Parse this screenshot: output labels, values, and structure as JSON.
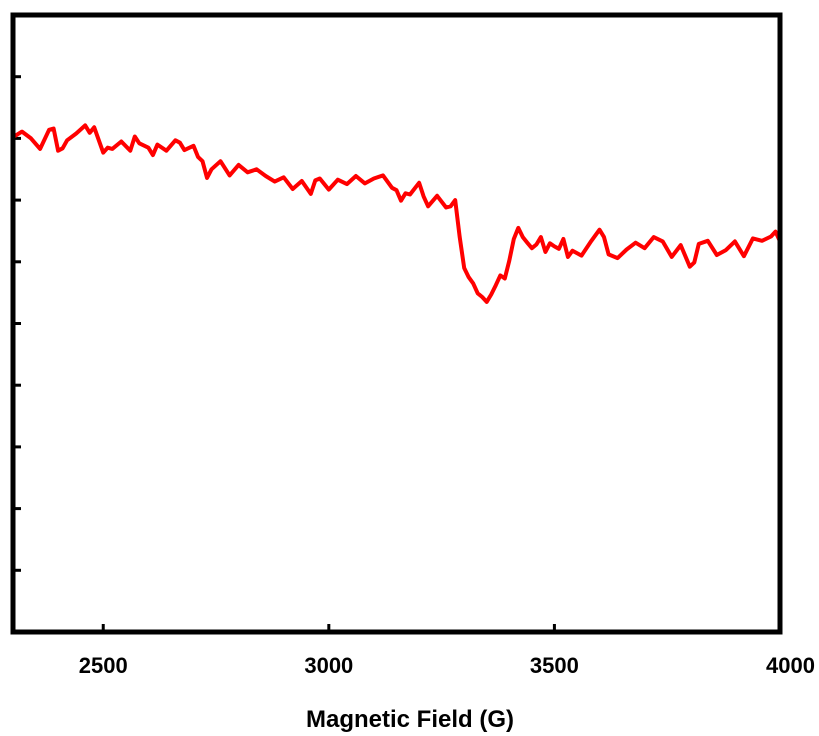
{
  "chart_data": {
    "type": "line",
    "title": "",
    "xlabel": "Magnetic Field (G)",
    "ylabel": "",
    "xlim": [
      2300,
      4000
    ],
    "ylim": [
      0,
      1
    ],
    "x_ticks": [
      2500,
      3000,
      3500,
      4000
    ],
    "x_tick_labels": [
      "2500",
      "3000",
      "3500",
      "4000"
    ],
    "y_ticks": [
      0.1,
      0.2,
      0.3,
      0.4,
      0.5,
      0.6,
      0.7,
      0.8,
      0.9,
      1.0
    ],
    "y_tick_labels": [],
    "grid": false,
    "legend": "none",
    "line_color": "#ff0000",
    "series": [
      {
        "name": "",
        "x": [
          2300,
          2320,
          2340,
          2360,
          2380,
          2390,
          2400,
          2410,
          2420,
          2440,
          2460,
          2470,
          2480,
          2500,
          2510,
          2520,
          2540,
          2560,
          2570,
          2580,
          2600,
          2610,
          2620,
          2640,
          2660,
          2670,
          2680,
          2700,
          2710,
          2720,
          2730,
          2740,
          2760,
          2780,
          2800,
          2820,
          2840,
          2860,
          2880,
          2900,
          2920,
          2940,
          2960,
          2970,
          2980,
          3000,
          3020,
          3040,
          3060,
          3080,
          3100,
          3120,
          3140,
          3150,
          3160,
          3170,
          3180,
          3200,
          3210,
          3220,
          3240,
          3260,
          3270,
          3280,
          3290,
          3300,
          3310,
          3320,
          3330,
          3340,
          3350,
          3360,
          3370,
          3380,
          3390,
          3400,
          3410,
          3420,
          3430,
          3440,
          3450,
          3460,
          3470,
          3480,
          3490,
          3500,
          3510,
          3520,
          3530,
          3540,
          3560,
          3580,
          3600,
          3610,
          3620,
          3640,
          3660,
          3680,
          3700,
          3720,
          3740,
          3760,
          3780,
          3800,
          3810,
          3820,
          3840,
          3860,
          3880,
          3900,
          3920,
          3940,
          3960,
          3980,
          3990,
          4000
        ],
        "y": [
          0.802,
          0.811,
          0.8,
          0.783,
          0.814,
          0.816,
          0.78,
          0.784,
          0.797,
          0.808,
          0.821,
          0.809,
          0.818,
          0.777,
          0.785,
          0.783,
          0.795,
          0.78,
          0.803,
          0.792,
          0.785,
          0.773,
          0.79,
          0.78,
          0.797,
          0.793,
          0.781,
          0.788,
          0.77,
          0.763,
          0.736,
          0.75,
          0.763,
          0.74,
          0.757,
          0.745,
          0.75,
          0.739,
          0.73,
          0.737,
          0.718,
          0.731,
          0.71,
          0.732,
          0.735,
          0.717,
          0.733,
          0.726,
          0.739,
          0.727,
          0.735,
          0.74,
          0.72,
          0.716,
          0.699,
          0.711,
          0.709,
          0.728,
          0.706,
          0.69,
          0.707,
          0.688,
          0.69,
          0.7,
          0.64,
          0.59,
          0.575,
          0.565,
          0.549,
          0.543,
          0.535,
          0.547,
          0.562,
          0.578,
          0.573,
          0.602,
          0.637,
          0.655,
          0.64,
          0.631,
          0.622,
          0.628,
          0.64,
          0.616,
          0.63,
          0.625,
          0.621,
          0.637,
          0.608,
          0.618,
          0.61,
          0.632,
          0.652,
          0.64,
          0.612,
          0.606,
          0.62,
          0.631,
          0.622,
          0.64,
          0.633,
          0.608,
          0.627,
          0.592,
          0.599,
          0.629,
          0.634,
          0.611,
          0.619,
          0.633,
          0.609,
          0.638,
          0.634,
          0.641,
          0.649,
          0.633
        ]
      }
    ]
  }
}
